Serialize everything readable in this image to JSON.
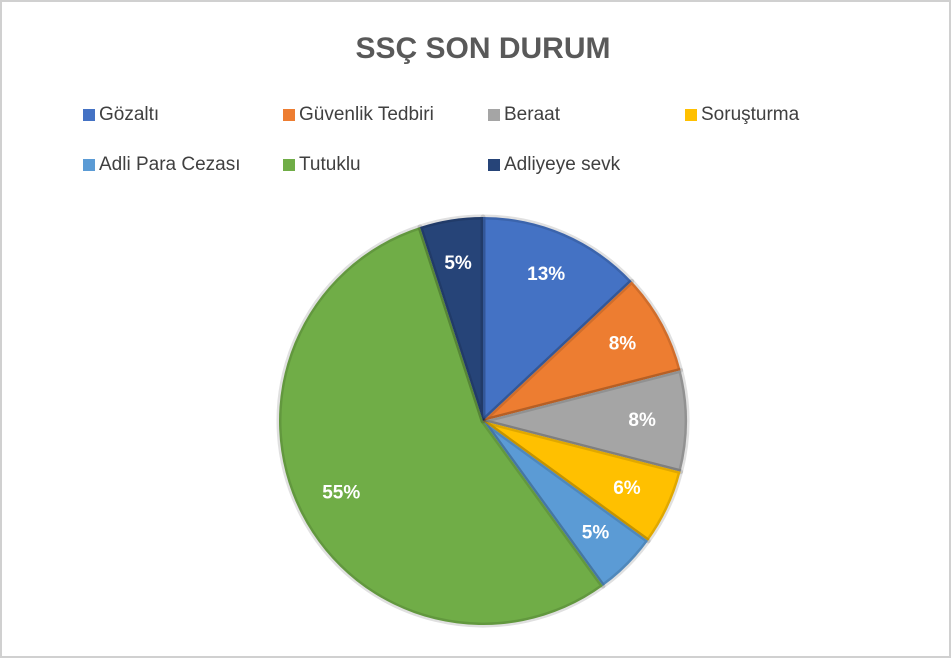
{
  "chart_data": {
    "type": "pie",
    "title": "SSÇ SON DURUM",
    "categories": [
      "Gözaltı",
      "Güvenlik Tedbiri",
      "Beraat",
      "Soruşturma",
      "Adli Para Cezası",
      "Tutuklu",
      "Adliyeye sevk"
    ],
    "values": [
      13,
      8,
      8,
      6,
      5,
      55,
      5
    ],
    "value_labels": [
      "13%",
      "8%",
      "8%",
      "6%",
      "5%",
      "55%",
      "5%"
    ],
    "colors": [
      "#4472c4",
      "#ed7d31",
      "#a5a5a5",
      "#ffc000",
      "#5b9bd5",
      "#70ad47",
      "#264478"
    ],
    "legend": "top"
  }
}
